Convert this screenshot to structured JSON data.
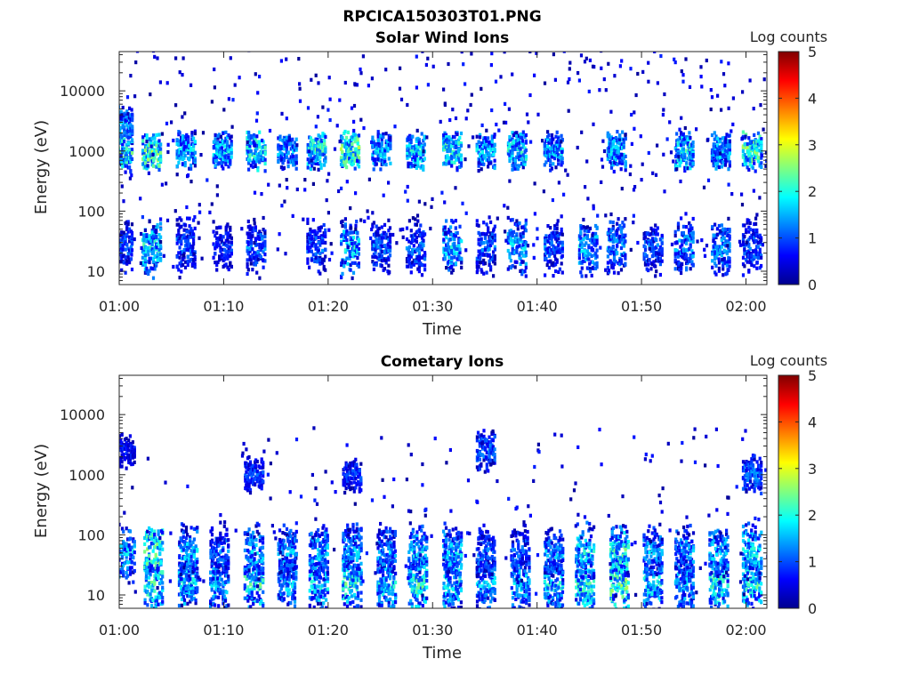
{
  "figure": {
    "title": "RPCICA150303T01.PNG"
  },
  "colors": {
    "colormap": "jet",
    "axes": "#262626",
    "background": "#ffffff"
  },
  "chart_data": [
    {
      "type": "heatmap",
      "title": "Solar Wind Ions",
      "xlabel": "Time",
      "ylabel": "Energy (eV)",
      "xlim": [
        "01:00",
        "02:02"
      ],
      "ylim": [
        6,
        45000
      ],
      "yscale": "log",
      "xticks": [
        "01:00",
        "01:10",
        "01:20",
        "01:30",
        "01:40",
        "01:50",
        "02:00"
      ],
      "yticks": [
        {
          "value": 10,
          "label": "10"
        },
        {
          "value": 100,
          "label": "100"
        },
        {
          "value": 1000,
          "label": "1000"
        },
        {
          "value": 10000,
          "label": "10000"
        }
      ],
      "colorbar": {
        "label": "Log counts",
        "min": 0,
        "max": 5,
        "ticks": [
          "0",
          "1",
          "2",
          "3",
          "4",
          "5"
        ]
      },
      "bursts": [
        {
          "time_min": 0.3,
          "energy_bands_eV": [
            25,
            2500,
            900
          ],
          "peak_log_counts": [
            1.5,
            1.8,
            2.5
          ]
        },
        {
          "time_min": 3.0,
          "energy_bands_eV": [
            25,
            1000
          ],
          "peak_log_counts": [
            2.3,
            2.8
          ]
        },
        {
          "time_min": 6.3,
          "energy_bands_eV": [
            25,
            1000
          ],
          "peak_log_counts": [
            1.5,
            2.0
          ]
        },
        {
          "time_min": 9.8,
          "energy_bands_eV": [
            25,
            1000
          ],
          "peak_log_counts": [
            1.2,
            2.0
          ]
        },
        {
          "time_min": 13.0,
          "energy_bands_eV": [
            25,
            1000
          ],
          "peak_log_counts": [
            1.5,
            2.5
          ]
        },
        {
          "time_min": 16.0,
          "energy_bands_eV": [
            1000
          ],
          "peak_log_counts": [
            1.8
          ]
        },
        {
          "time_min": 18.8,
          "energy_bands_eV": [
            25,
            1000
          ],
          "peak_log_counts": [
            1.5,
            2.5
          ]
        },
        {
          "time_min": 22.0,
          "energy_bands_eV": [
            25,
            1000
          ],
          "peak_log_counts": [
            2.2,
            2.8
          ]
        },
        {
          "time_min": 25.0,
          "energy_bands_eV": [
            25,
            1000
          ],
          "peak_log_counts": [
            1.5,
            2.0
          ]
        },
        {
          "time_min": 28.3,
          "energy_bands_eV": [
            25,
            1000
          ],
          "peak_log_counts": [
            1.5,
            2.2
          ]
        },
        {
          "time_min": 31.8,
          "energy_bands_eV": [
            25,
            1000
          ],
          "peak_log_counts": [
            2.0,
            2.5
          ]
        },
        {
          "time_min": 35.0,
          "energy_bands_eV": [
            25,
            1000
          ],
          "peak_log_counts": [
            1.5,
            2.0
          ]
        },
        {
          "time_min": 38.0,
          "energy_bands_eV": [
            25,
            1000
          ],
          "peak_log_counts": [
            2.0,
            2.3
          ]
        },
        {
          "time_min": 41.5,
          "energy_bands_eV": [
            25,
            1000
          ],
          "peak_log_counts": [
            1.5,
            2.0
          ]
        },
        {
          "time_min": 44.8,
          "energy_bands_eV": [
            25
          ],
          "peak_log_counts": [
            2.0
          ]
        },
        {
          "time_min": 47.5,
          "energy_bands_eV": [
            25,
            1000
          ],
          "peak_log_counts": [
            1.8,
            2.0
          ]
        },
        {
          "time_min": 51.0,
          "energy_bands_eV": [
            25
          ],
          "peak_log_counts": [
            1.5
          ]
        },
        {
          "time_min": 54.0,
          "energy_bands_eV": [
            25,
            1000
          ],
          "peak_log_counts": [
            1.8,
            2.3
          ]
        },
        {
          "time_min": 57.5,
          "energy_bands_eV": [
            25,
            1000
          ],
          "peak_log_counts": [
            1.8,
            2.0
          ]
        },
        {
          "time_min": 60.5,
          "energy_bands_eV": [
            25,
            1000
          ],
          "peak_log_counts": [
            1.5,
            2.8
          ]
        }
      ]
    },
    {
      "type": "heatmap",
      "title": "Cometary Ions",
      "xlabel": "Time",
      "ylabel": "Energy (eV)",
      "xlim": [
        "01:00",
        "02:02"
      ],
      "ylim": [
        6,
        45000
      ],
      "yscale": "log",
      "xticks": [
        "01:00",
        "01:10",
        "01:20",
        "01:30",
        "01:40",
        "01:50",
        "02:00"
      ],
      "yticks": [
        {
          "value": 10,
          "label": "10"
        },
        {
          "value": 100,
          "label": "100"
        },
        {
          "value": 1000,
          "label": "1000"
        },
        {
          "value": 10000,
          "label": "10000"
        }
      ],
      "colorbar": {
        "label": "Log counts",
        "min": 0,
        "max": 5,
        "ticks": [
          "0",
          "1",
          "2",
          "3",
          "4",
          "5"
        ]
      },
      "bursts": [
        {
          "time_min": 0.5,
          "energy_bands_eV": [
            50,
            2500
          ],
          "peak_log_counts": [
            2.0,
            1.0
          ]
        },
        {
          "time_min": 3.2,
          "energy_bands_eV": [
            15,
            50
          ],
          "peak_log_counts": [
            2.5,
            2.8
          ]
        },
        {
          "time_min": 6.5,
          "energy_bands_eV": [
            15,
            50
          ],
          "peak_log_counts": [
            2.2,
            2.0
          ]
        },
        {
          "time_min": 9.5,
          "energy_bands_eV": [
            15,
            50
          ],
          "peak_log_counts": [
            2.0,
            1.5
          ]
        },
        {
          "time_min": 12.8,
          "energy_bands_eV": [
            15,
            50,
            1000
          ],
          "peak_log_counts": [
            2.5,
            2.0,
            1.2
          ]
        },
        {
          "time_min": 16.0,
          "energy_bands_eV": [
            15,
            50
          ],
          "peak_log_counts": [
            2.0,
            1.8
          ]
        },
        {
          "time_min": 19.0,
          "energy_bands_eV": [
            15,
            50
          ],
          "peak_log_counts": [
            2.2,
            2.0
          ]
        },
        {
          "time_min": 22.2,
          "energy_bands_eV": [
            15,
            50,
            1000
          ],
          "peak_log_counts": [
            2.5,
            2.0,
            1.2
          ]
        },
        {
          "time_min": 25.5,
          "energy_bands_eV": [
            15,
            50
          ],
          "peak_log_counts": [
            2.2,
            1.8
          ]
        },
        {
          "time_min": 28.5,
          "energy_bands_eV": [
            15,
            50
          ],
          "peak_log_counts": [
            2.5,
            2.2
          ]
        },
        {
          "time_min": 31.8,
          "energy_bands_eV": [
            15,
            50
          ],
          "peak_log_counts": [
            2.3,
            2.0
          ]
        },
        {
          "time_min": 35.0,
          "energy_bands_eV": [
            15,
            50,
            2500
          ],
          "peak_log_counts": [
            2.0,
            1.5,
            1.5
          ]
        },
        {
          "time_min": 38.3,
          "energy_bands_eV": [
            15,
            50
          ],
          "peak_log_counts": [
            2.0,
            1.5
          ]
        },
        {
          "time_min": 41.5,
          "energy_bands_eV": [
            15,
            50
          ],
          "peak_log_counts": [
            2.2,
            1.8
          ]
        },
        {
          "time_min": 44.5,
          "energy_bands_eV": [
            15,
            50
          ],
          "peak_log_counts": [
            2.5,
            2.2
          ]
        },
        {
          "time_min": 47.8,
          "energy_bands_eV": [
            15,
            50
          ],
          "peak_log_counts": [
            2.8,
            2.5
          ]
        },
        {
          "time_min": 51.0,
          "energy_bands_eV": [
            15,
            50
          ],
          "peak_log_counts": [
            2.2,
            1.8
          ]
        },
        {
          "time_min": 54.0,
          "energy_bands_eV": [
            15,
            50
          ],
          "peak_log_counts": [
            2.0,
            1.8
          ]
        },
        {
          "time_min": 57.3,
          "energy_bands_eV": [
            15,
            50
          ],
          "peak_log_counts": [
            2.5,
            2.0
          ]
        },
        {
          "time_min": 60.5,
          "energy_bands_eV": [
            15,
            50,
            1000
          ],
          "peak_log_counts": [
            2.5,
            2.2,
            1.5
          ]
        }
      ]
    }
  ]
}
